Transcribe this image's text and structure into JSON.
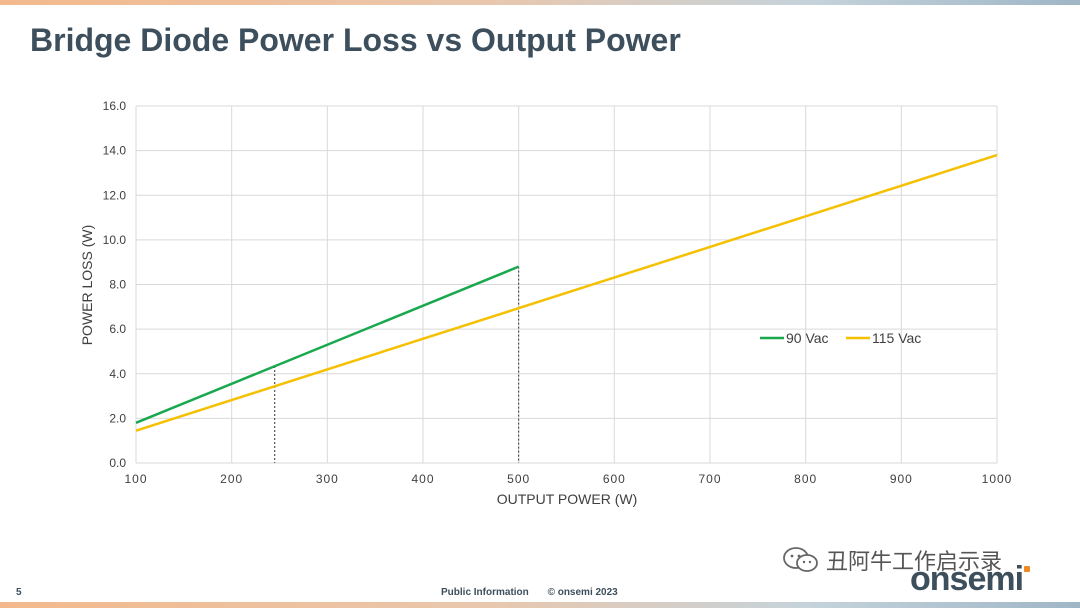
{
  "slide": {
    "title": "Bridge Diode Power Loss vs Output Power",
    "page_number": "5",
    "footer_info": "Public Information",
    "footer_copyright": "© onsemi 2023",
    "watermark_text": "丑阿牛工作启示录",
    "logo_text": "onsemi"
  },
  "chart_data": {
    "type": "line",
    "title": "",
    "xlabel": "OUTPUT POWER (W)",
    "ylabel": "POWER LOSS (W)",
    "xlim": [
      100,
      1000
    ],
    "ylim": [
      0,
      16
    ],
    "xticks": [
      100,
      200,
      300,
      400,
      500,
      600,
      700,
      800,
      900,
      1000
    ],
    "yticks": [
      0,
      2,
      4,
      6,
      8,
      10,
      12,
      14,
      16
    ],
    "grid": true,
    "legend_position": "right",
    "series": [
      {
        "name": "90 Vac",
        "color": "#1aa84f",
        "x": [
          100,
          500
        ],
        "y": [
          1.8,
          8.8
        ]
      },
      {
        "name": "115 Vac",
        "color": "#f5c000",
        "x": [
          100,
          1000
        ],
        "y": [
          1.45,
          13.8
        ]
      }
    ],
    "reference_lines": [
      {
        "x": 245,
        "y": 4.35
      },
      {
        "x": 500,
        "y": 8.8
      }
    ]
  }
}
